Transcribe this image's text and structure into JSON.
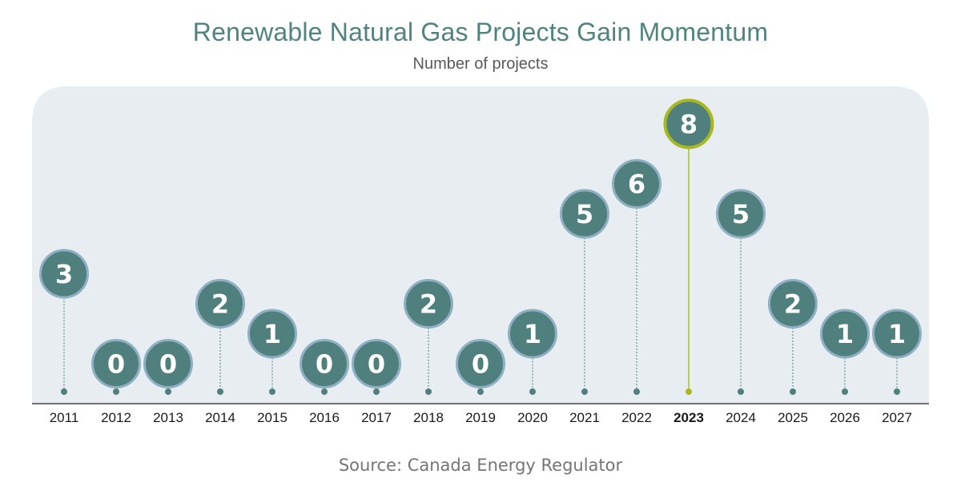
{
  "chart_data": {
    "type": "scatter",
    "title": "Renewable Natural Gas Projects Gain Momentum",
    "subtitle": "Number of projects",
    "source": "Source: Canada Energy Regulator",
    "categories": [
      "2011",
      "2012",
      "2013",
      "2014",
      "2015",
      "2016",
      "2017",
      "2018",
      "2019",
      "2020",
      "2021",
      "2022",
      "2023",
      "2024",
      "2025",
      "2026",
      "2027"
    ],
    "values": [
      3,
      0,
      0,
      2,
      1,
      0,
      0,
      2,
      0,
      1,
      5,
      6,
      8,
      5,
      2,
      1,
      1
    ],
    "highlight_category": "2023",
    "ylim": [
      0,
      8
    ],
    "grid": false,
    "colors": {
      "bubble": "#4f807d",
      "bubble_ring": "#8fb0c4",
      "highlight_ring": "#a8b81e",
      "plot_bg": "#e7edf0",
      "dot": "#4f807d",
      "highlight_dot": "#a8b81e",
      "title": "#4f8380"
    }
  }
}
